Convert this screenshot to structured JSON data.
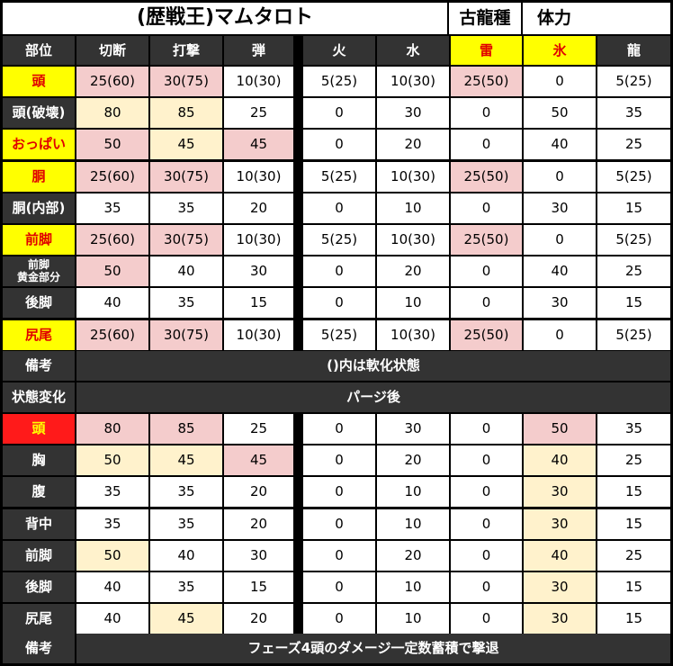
{
  "title": "(歴戦王)マムタロト",
  "header_extra": [
    "古龍種",
    "体力"
  ],
  "columns": [
    "部位",
    "切断",
    "打撃",
    "弾",
    "火",
    "水",
    "雷",
    "氷",
    "龍"
  ],
  "column_highlight": [
    false,
    false,
    false,
    false,
    false,
    false,
    true,
    true,
    false
  ],
  "rows": [
    {
      "label": "頭",
      "style": "yl",
      "values": [
        "25(60)",
        "30(75)",
        "10(30)",
        "5(25)",
        "10(30)",
        "25(50)",
        "0",
        "5(25)"
      ],
      "hl": [
        "pk",
        "pk",
        "",
        "",
        "",
        "pk",
        "",
        ""
      ]
    },
    {
      "label": "頭(破壊)",
      "style": "",
      "values": [
        "80",
        "85",
        "25",
        "0",
        "30",
        "0",
        "50",
        "35"
      ],
      "hl": [
        "cr",
        "cr",
        "",
        "",
        "",
        "",
        "",
        ""
      ]
    },
    {
      "label": "おっぱい",
      "style": "yl",
      "values": [
        "50",
        "45",
        "45",
        "0",
        "20",
        "0",
        "40",
        "25"
      ],
      "hl": [
        "pk",
        "cr",
        "pk",
        "",
        "",
        "",
        "",
        ""
      ]
    },
    {
      "label": "胴",
      "style": "yl",
      "values": [
        "25(60)",
        "30(75)",
        "10(30)",
        "5(25)",
        "10(30)",
        "25(50)",
        "0",
        "5(25)"
      ],
      "hl": [
        "pk",
        "pk",
        "",
        "",
        "",
        "pk",
        "",
        ""
      ]
    },
    {
      "label": "胴(内部)",
      "style": "",
      "values": [
        "35",
        "35",
        "20",
        "0",
        "10",
        "0",
        "30",
        "15"
      ],
      "hl": [
        "",
        "",
        "",
        "",
        "",
        "",
        "",
        ""
      ]
    },
    {
      "label": "前脚",
      "style": "yl",
      "values": [
        "25(60)",
        "30(75)",
        "10(30)",
        "5(25)",
        "10(30)",
        "25(50)",
        "0",
        "5(25)"
      ],
      "hl": [
        "pk",
        "pk",
        "",
        "",
        "",
        "pk",
        "",
        ""
      ]
    },
    {
      "label": "前脚\n黄金部分",
      "style": "small",
      "values": [
        "50",
        "40",
        "30",
        "0",
        "20",
        "0",
        "40",
        "25"
      ],
      "hl": [
        "pk",
        "",
        "",
        "",
        "",
        "",
        "",
        ""
      ]
    },
    {
      "label": "後脚",
      "style": "",
      "values": [
        "40",
        "35",
        "15",
        "0",
        "10",
        "0",
        "30",
        "15"
      ],
      "hl": [
        "",
        "",
        "",
        "",
        "",
        "",
        "",
        ""
      ]
    },
    {
      "label": "尻尾",
      "style": "yl",
      "values": [
        "25(60)",
        "30(75)",
        "10(30)",
        "5(25)",
        "10(30)",
        "25(50)",
        "0",
        "5(25)"
      ],
      "hl": [
        "pk",
        "pk",
        "",
        "",
        "",
        "pk",
        "",
        ""
      ]
    }
  ],
  "note1_label": "備考",
  "note1_text": "()内は軟化状態",
  "state_label": "状態変化",
  "state_text": "パージ後",
  "rows2": [
    {
      "label": "頭",
      "style": "rb",
      "values": [
        "80",
        "85",
        "25",
        "0",
        "30",
        "0",
        "50",
        "35"
      ],
      "hl": [
        "pk",
        "pk",
        "",
        "",
        "",
        "",
        "pk",
        ""
      ]
    },
    {
      "label": "胸",
      "style": "",
      "values": [
        "50",
        "45",
        "45",
        "0",
        "20",
        "0",
        "40",
        "25"
      ],
      "hl": [
        "cr",
        "cr",
        "pk",
        "",
        "",
        "",
        "cr",
        ""
      ]
    },
    {
      "label": "腹",
      "style": "",
      "values": [
        "35",
        "35",
        "20",
        "0",
        "10",
        "0",
        "30",
        "15"
      ],
      "hl": [
        "",
        "",
        "",
        "",
        "",
        "",
        "cr",
        ""
      ]
    },
    {
      "label": "背中",
      "style": "",
      "values": [
        "35",
        "35",
        "20",
        "0",
        "10",
        "0",
        "30",
        "15"
      ],
      "hl": [
        "",
        "",
        "",
        "",
        "",
        "",
        "cr",
        ""
      ]
    },
    {
      "label": "前脚",
      "style": "",
      "values": [
        "50",
        "40",
        "30",
        "0",
        "20",
        "0",
        "40",
        "25"
      ],
      "hl": [
        "cr",
        "",
        "",
        "",
        "",
        "",
        "cr",
        ""
      ]
    },
    {
      "label": "後脚",
      "style": "",
      "values": [
        "40",
        "35",
        "15",
        "0",
        "10",
        "0",
        "30",
        "15"
      ],
      "hl": [
        "",
        "",
        "",
        "",
        "",
        "",
        "cr",
        ""
      ]
    },
    {
      "label": "尻尾",
      "style": "",
      "values": [
        "40",
        "45",
        "20",
        "0",
        "10",
        "0",
        "30",
        "15"
      ],
      "hl": [
        "",
        "cr",
        "",
        "",
        "",
        "",
        "cr",
        ""
      ]
    }
  ],
  "note2_label": "備考",
  "note2_text": "フェーズ4頭のダメージ一定数蓄積で撃退",
  "colors": {
    "yellow": "#ffff00",
    "red_label": "#e00000",
    "pink": "#f4cccc",
    "cream": "#fff2cc",
    "header_bg": "#333333",
    "bright_red": "#ff1a1a"
  }
}
